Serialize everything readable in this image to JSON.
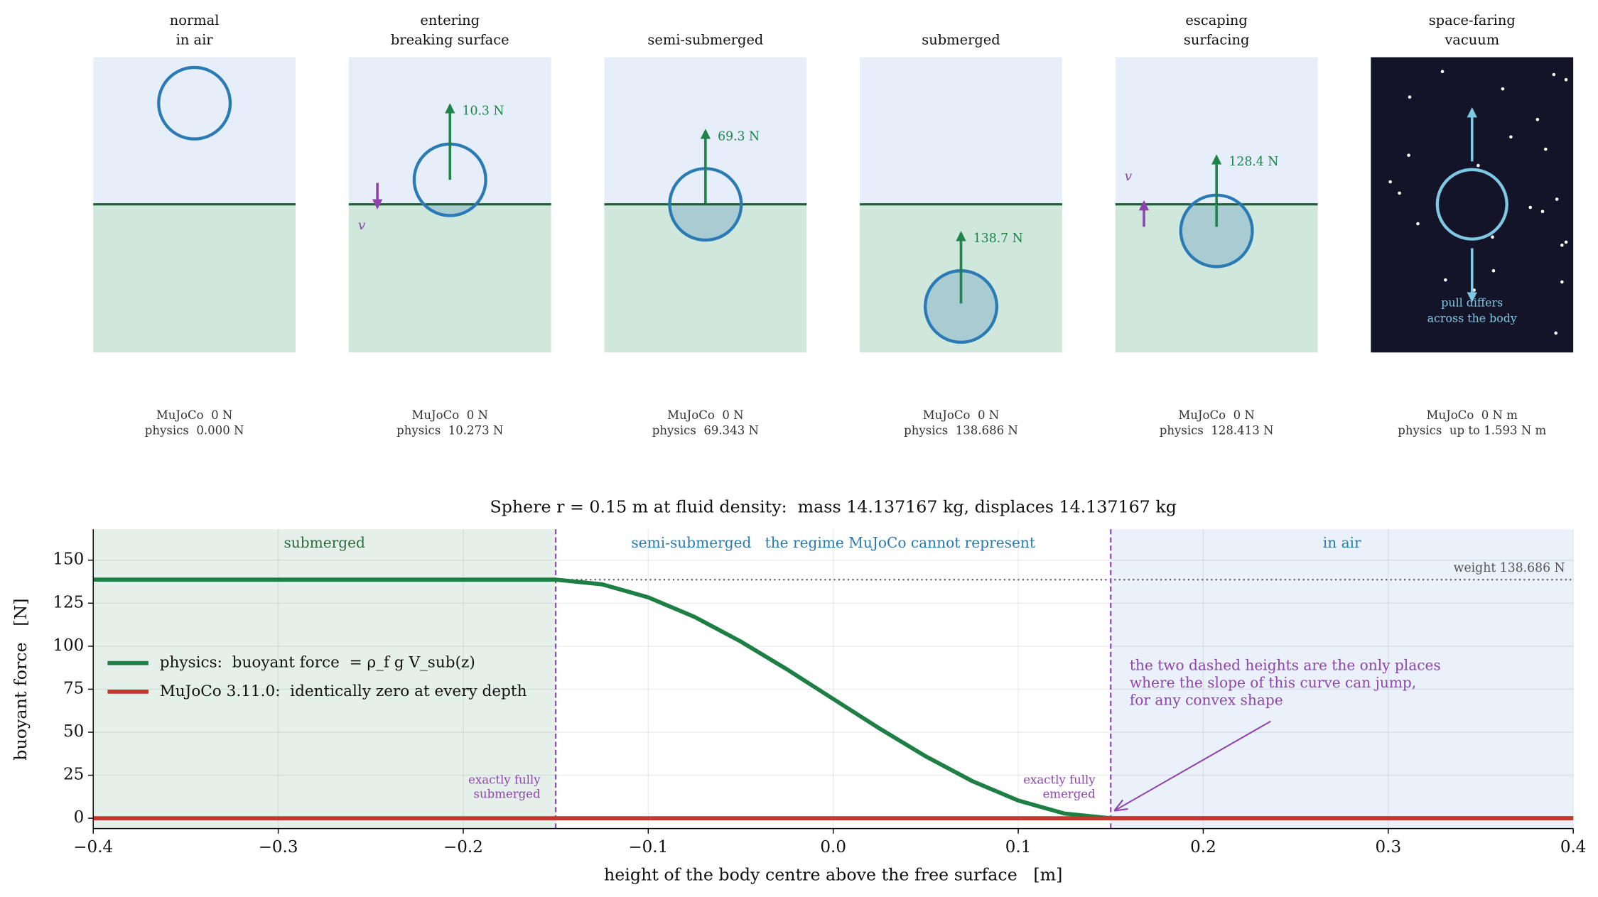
{
  "panels": [
    {
      "title_lines": [
        "normal",
        "in air"
      ],
      "mujoco": "MuJoCo  0 N",
      "physics": "physics  0.000 N"
    },
    {
      "title_lines": [
        "entering",
        "breaking surface"
      ],
      "force_label": "10.3 N",
      "velocity_label": "v",
      "mujoco": "MuJoCo  0 N",
      "physics": "physics  10.273 N"
    },
    {
      "title_lines": [
        "semi-submerged"
      ],
      "force_label": "69.3 N",
      "mujoco": "MuJoCo  0 N",
      "physics": "physics  69.343 N"
    },
    {
      "title_lines": [
        "submerged"
      ],
      "force_label": "138.7 N",
      "mujoco": "MuJoCo  0 N",
      "physics": "physics  138.686 N"
    },
    {
      "title_lines": [
        "escaping",
        "surfacing"
      ],
      "force_label": "128.4 N",
      "velocity_label": "v",
      "mujoco": "MuJoCo  0 N",
      "physics": "physics  128.413 N"
    },
    {
      "title_lines": [
        "space-faring",
        "vacuum"
      ],
      "note_lines": [
        "pull differs",
        "across the body"
      ],
      "mujoco": "MuJoCo  0 N m",
      "physics": "physics  up to 1.593 N m"
    }
  ],
  "chart_data": {
    "type": "line",
    "title": "Sphere r = 0.15 m at fluid density:  mass 14.137167 kg, displaces 14.137167 kg",
    "xlabel": "height of the body centre above the free surface   [m]",
    "ylabel": "buoyant force   [N]",
    "xlim": [
      -0.4,
      0.4
    ],
    "ylim": [
      -6,
      168
    ],
    "xticks": [
      {
        "value": -0.4,
        "label": "−0.4"
      },
      {
        "value": -0.3,
        "label": "−0.3"
      },
      {
        "value": -0.2,
        "label": "−0.2"
      },
      {
        "value": -0.1,
        "label": "−0.1"
      },
      {
        "value": 0,
        "label": "0.0"
      },
      0.1,
      0.2,
      0.3,
      0.4
    ],
    "yticks": [
      0,
      25,
      50,
      75,
      100,
      125,
      150
    ],
    "grid": true,
    "series": [
      {
        "name": "physics:  buoyant force  = ρ_f g V_sub(z)",
        "color": "#1e7f45",
        "x": [
          -0.4,
          -0.15,
          -0.125,
          -0.1,
          -0.075,
          -0.05,
          -0.025,
          0,
          0.025,
          0.05,
          0.075,
          0.1,
          0.125,
          0.15,
          0.4
        ],
        "values": [
          138.686,
          138.686,
          135.96,
          128.41,
          117.02,
          102.73,
          86.52,
          69.34,
          52.17,
          35.96,
          21.67,
          10.27,
          2.73,
          0,
          0
        ]
      },
      {
        "name": "MuJoCo 3.11.0:  identically zero at every depth",
        "color": "#c0392b",
        "x": [
          -0.4,
          0.4
        ],
        "values": [
          0,
          0
        ]
      }
    ],
    "regions": [
      {
        "label": "submerged",
        "color": "#e6f0ea",
        "label_color": "#2e6b3c"
      },
      {
        "label": "semi-submerged   the regime MuJoCo cannot represent",
        "color": "#ffffff",
        "label_color": "#2a7ab0"
      },
      {
        "label": "in air",
        "color": "#eaf1fb",
        "label_color": "#2a7ab0"
      }
    ],
    "vlines": [
      {
        "value": -0.15,
        "label_lines": [
          "exactly fully",
          "submerged"
        ]
      },
      {
        "value": 0.15,
        "label_lines": [
          "exactly fully",
          "emerged"
        ]
      }
    ],
    "reference_line": {
      "value": 138.686,
      "label": "weight 138.686 N"
    },
    "annotation_lines": [
      "the two dashed heights are the only places",
      "where the slope of this curve can jump,",
      "for any convex shape"
    ]
  }
}
